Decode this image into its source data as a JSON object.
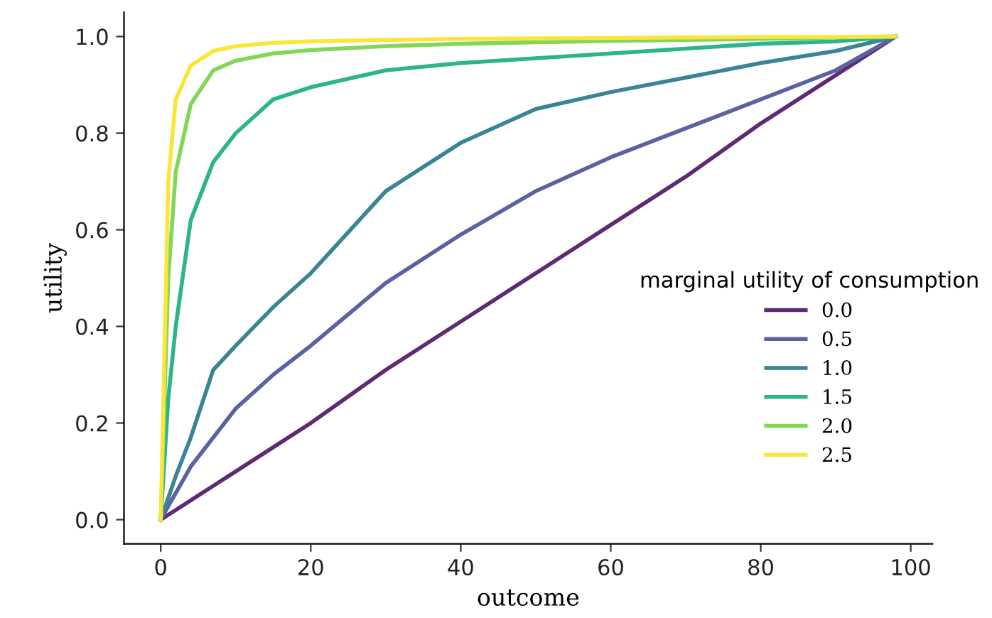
{
  "chart_data": {
    "type": "line",
    "xlabel": "outcome",
    "ylabel": "utility",
    "legend_title": "marginal utility of consumption",
    "legend": "right",
    "grid": false,
    "x": [
      0,
      1,
      2,
      4,
      7,
      10,
      15,
      20,
      30,
      40,
      50,
      60,
      70,
      80,
      90,
      98
    ],
    "series": [
      {
        "name": "0.0",
        "color": "#5e2a74",
        "values": [
          0,
          0.01,
          0.02,
          0.04,
          0.07,
          0.1,
          0.15,
          0.2,
          0.31,
          0.41,
          0.51,
          0.61,
          0.71,
          0.82,
          0.92,
          1
        ]
      },
      {
        "name": "0.5",
        "color": "#5a62a0",
        "values": [
          0,
          0.028,
          0.055,
          0.11,
          0.17,
          0.23,
          0.3,
          0.36,
          0.49,
          0.59,
          0.68,
          0.75,
          0.81,
          0.87,
          0.93,
          1
        ]
      },
      {
        "name": "1.0",
        "color": "#3a8497",
        "values": [
          0,
          0.045,
          0.09,
          0.17,
          0.31,
          0.36,
          0.44,
          0.51,
          0.68,
          0.78,
          0.85,
          0.885,
          0.915,
          0.945,
          0.97,
          1
        ]
      },
      {
        "name": "1.5",
        "color": "#2db48a",
        "values": [
          0,
          0.25,
          0.4,
          0.62,
          0.74,
          0.8,
          0.87,
          0.895,
          0.93,
          0.945,
          0.955,
          0.965,
          0.975,
          0.985,
          0.99,
          1
        ]
      },
      {
        "name": "2.0",
        "color": "#83d65a",
        "values": [
          0,
          0.5,
          0.72,
          0.86,
          0.93,
          0.95,
          0.965,
          0.972,
          0.98,
          0.985,
          0.988,
          0.991,
          0.993,
          0.995,
          0.998,
          1
        ]
      },
      {
        "name": "2.5",
        "color": "#fbe53a",
        "values": [
          0,
          0.7,
          0.87,
          0.94,
          0.97,
          0.98,
          0.987,
          0.99,
          0.993,
          0.995,
          0.996,
          0.997,
          0.998,
          0.999,
          0.999,
          1
        ]
      }
    ],
    "xlim": [
      -4.9,
      102.9
    ],
    "xticks": [
      0,
      20,
      40,
      60,
      80,
      100
    ],
    "ylim": [
      -0.05,
      1.05
    ],
    "yticks": [
      {
        "value": 0,
        "label": "0.0"
      },
      {
        "value": 0.2,
        "label": "0.2"
      },
      {
        "value": 0.4,
        "label": "0.4"
      },
      {
        "value": 0.6,
        "label": "0.6"
      },
      {
        "value": 0.8,
        "label": "0.8"
      },
      {
        "value": 1.0,
        "label": "1.0"
      }
    ]
  }
}
